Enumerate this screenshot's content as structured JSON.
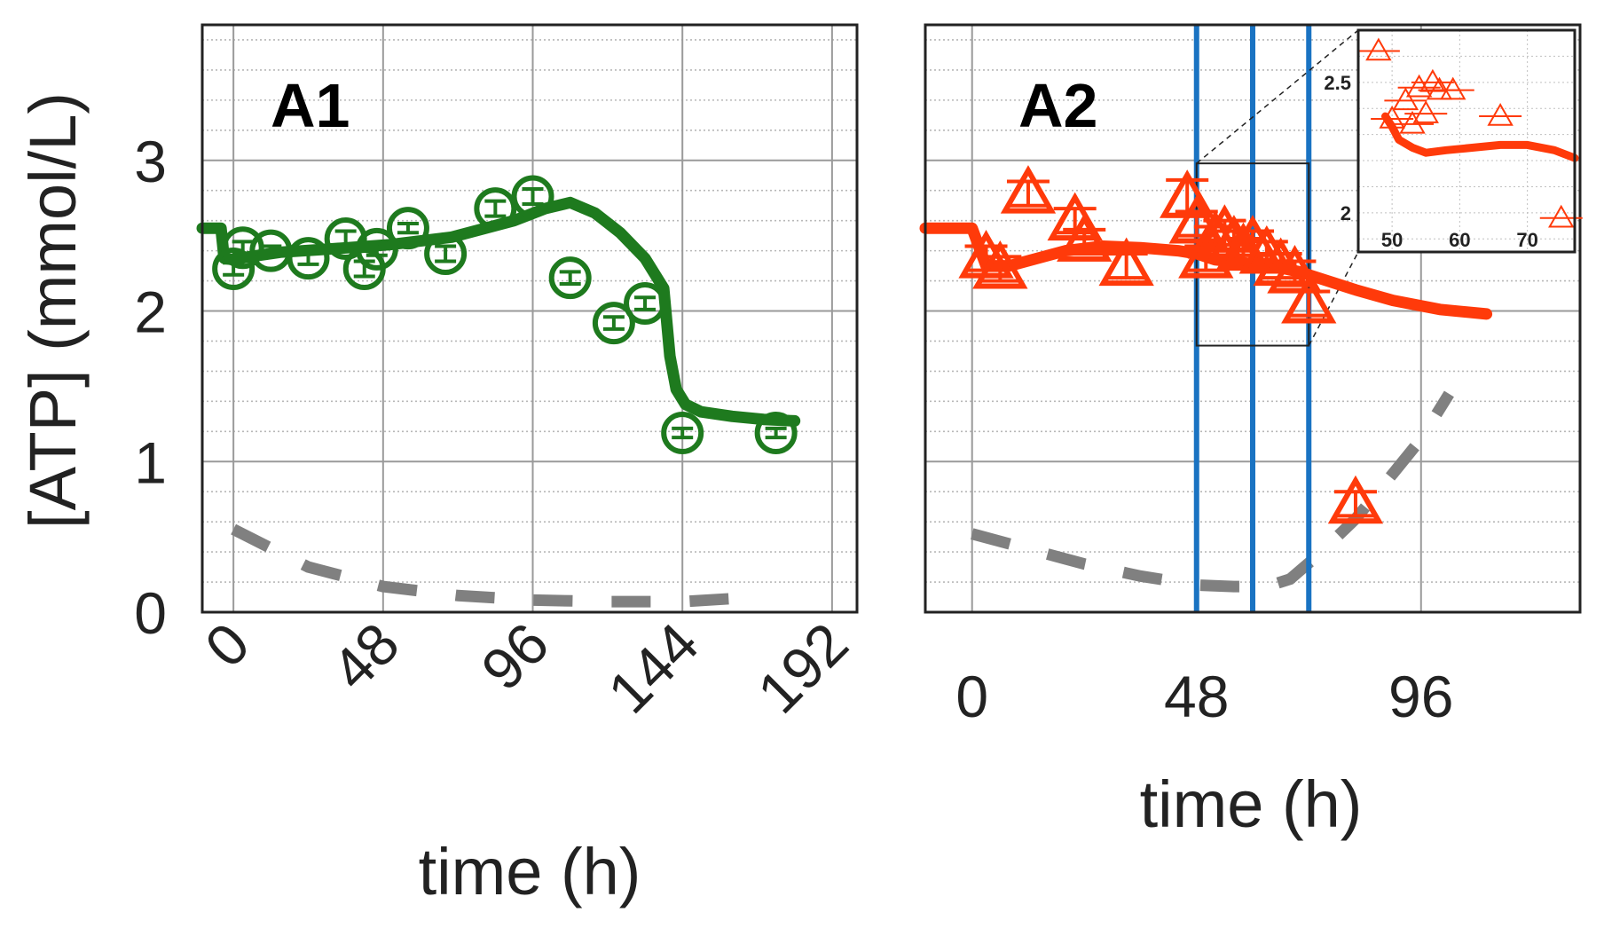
{
  "ylabel": "[ATP] (mmol/L)",
  "colors": {
    "green": "#1e7a1e",
    "red": "#ff3a0a",
    "gray": "#808080",
    "blue": "#1a73c2",
    "grid": "#aaaaaa",
    "axis": "#222222"
  },
  "chart_data": [
    {
      "type": "scatter",
      "panel_label": "A1",
      "xlabel": "time (h)",
      "ylabel": "[ATP] (mmol/L)",
      "xlim": [
        -10,
        200
      ],
      "ylim": [
        0,
        3.9
      ],
      "xticks": [
        "0",
        "48",
        "96",
        "144",
        "192"
      ],
      "xtick_values": [
        0,
        48,
        96,
        144,
        192
      ],
      "yticks": [
        "0",
        "1",
        "2",
        "3"
      ],
      "ytick_values": [
        0,
        1,
        2,
        3
      ],
      "marker": "circle",
      "color": "#1e7a1e",
      "grid": true,
      "points": {
        "x": [
          0,
          3,
          12,
          24,
          36,
          42,
          46,
          56,
          68,
          84,
          96,
          108,
          122,
          132,
          144,
          174
        ],
        "y": [
          2.28,
          2.42,
          2.4,
          2.35,
          2.48,
          2.28,
          2.41,
          2.55,
          2.38,
          2.68,
          2.76,
          2.22,
          1.92,
          2.05,
          1.19,
          1.19
        ],
        "yerr": [
          0.04,
          0.04,
          0.03,
          0.04,
          0.05,
          0.05,
          0.04,
          0.03,
          0.05,
          0.05,
          0.05,
          0.04,
          0.04,
          0.04,
          0.03,
          0.03
        ]
      },
      "fit": {
        "x": [
          -10,
          -4,
          -3,
          0,
          5,
          15,
          30,
          50,
          70,
          90,
          100,
          108,
          116,
          124,
          132,
          138,
          140,
          142,
          145,
          150,
          160,
          170,
          180
        ],
        "y": [
          2.55,
          2.55,
          2.35,
          2.34,
          2.36,
          2.39,
          2.41,
          2.44,
          2.49,
          2.6,
          2.68,
          2.72,
          2.65,
          2.52,
          2.35,
          2.15,
          1.7,
          1.48,
          1.38,
          1.33,
          1.3,
          1.28,
          1.27
        ]
      },
      "dashed": {
        "x": [
          0,
          24,
          48,
          72,
          96,
          120,
          144,
          168
        ],
        "y": [
          0.55,
          0.3,
          0.17,
          0.11,
          0.08,
          0.07,
          0.07,
          0.1
        ]
      }
    },
    {
      "type": "scatter",
      "panel_label": "A2",
      "xlabel": "time (h)",
      "ylabel": "",
      "xlim": [
        -10,
        130
      ],
      "ylim": [
        0,
        3.9
      ],
      "xticks": [
        "0",
        "48",
        "96"
      ],
      "xtick_values": [
        0,
        48,
        96
      ],
      "yticks": [],
      "marker": "triangle",
      "color": "#ff3a0a",
      "grid": true,
      "vlines_x": [
        48,
        60,
        72
      ],
      "zoom_box": {
        "x": [
          48,
          72
        ],
        "y": [
          1.77,
          2.98
        ]
      },
      "points": {
        "x": [
          3,
          6,
          12,
          22,
          24,
          33,
          46,
          48,
          50,
          52,
          54,
          56,
          58,
          60,
          63,
          66,
          69,
          72,
          82
        ],
        "y": [
          2.35,
          2.28,
          2.78,
          2.6,
          2.46,
          2.3,
          2.75,
          2.58,
          2.35,
          2.48,
          2.52,
          2.45,
          2.4,
          2.45,
          2.38,
          2.3,
          2.25,
          2.05,
          0.72
        ],
        "yerr": [
          0.08,
          0.08,
          0.08,
          0.08,
          0.08,
          0.08,
          0.12,
          0.08,
          0.08,
          0.08,
          0.08,
          0.08,
          0.08,
          0.08,
          0.08,
          0.08,
          0.08,
          0.08,
          0.08
        ]
      },
      "fit": {
        "x": [
          -10,
          0,
          3,
          8,
          14,
          20,
          28,
          36,
          44,
          48,
          52,
          58,
          64,
          70,
          76,
          82,
          90,
          100,
          110
        ],
        "y": [
          2.55,
          2.55,
          2.3,
          2.3,
          2.35,
          2.4,
          2.43,
          2.42,
          2.4,
          2.38,
          2.34,
          2.32,
          2.3,
          2.26,
          2.2,
          2.14,
          2.07,
          2.01,
          1.98
        ]
      },
      "dashed": {
        "x": [
          0,
          12,
          24,
          36,
          48,
          56,
          60,
          64,
          68,
          74,
          82,
          90,
          96,
          102
        ],
        "y": [
          0.52,
          0.42,
          0.32,
          0.24,
          0.18,
          0.17,
          0.17,
          0.18,
          0.22,
          0.38,
          0.62,
          0.92,
          1.15,
          1.45
        ]
      },
      "inset": {
        "xlim": [
          45,
          77
        ],
        "ylim": [
          1.85,
          2.7
        ],
        "xticks": [
          "50",
          "60",
          "70"
        ],
        "xtick_values": [
          50,
          60,
          70
        ],
        "yticks": [
          "2",
          "2.5"
        ],
        "ytick_values": [
          2,
          2.5
        ],
        "points": {
          "x": [
            48,
            50,
            52,
            53,
            54,
            55,
            56,
            57,
            59,
            66,
            75
          ],
          "y": [
            2.62,
            2.36,
            2.43,
            2.34,
            2.48,
            2.38,
            2.5,
            2.47,
            2.47,
            2.37,
            1.98
          ]
        },
        "fit": {
          "x": [
            49,
            50,
            51,
            53,
            55,
            58,
            62,
            66,
            70,
            74,
            77
          ],
          "y": [
            2.37,
            2.33,
            2.28,
            2.25,
            2.23,
            2.24,
            2.25,
            2.26,
            2.26,
            2.24,
            2.21
          ]
        }
      }
    }
  ]
}
